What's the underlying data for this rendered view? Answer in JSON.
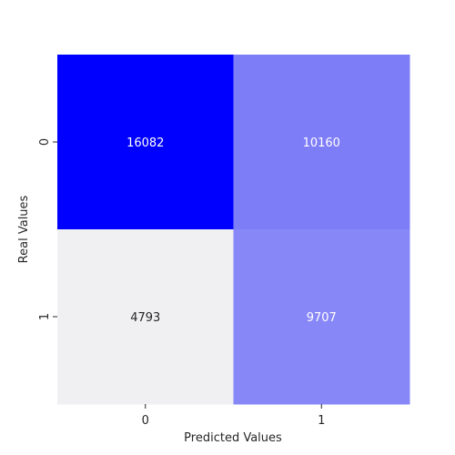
{
  "chart_data": {
    "type": "heatmap",
    "title": "",
    "xlabel": "Predicted Values",
    "ylabel": "Real Values",
    "x_categories": [
      "0",
      "1"
    ],
    "y_categories": [
      "0",
      "1"
    ],
    "values": [
      [
        16082,
        10160
      ],
      [
        4793,
        9707
      ]
    ],
    "colorscale": {
      "low": "#f0eff2",
      "high": "#0000ff"
    },
    "annotation_colors": {
      "dark_bg": "#ffffff",
      "light_bg": "#262626"
    },
    "colorbar": false,
    "grid": false
  }
}
